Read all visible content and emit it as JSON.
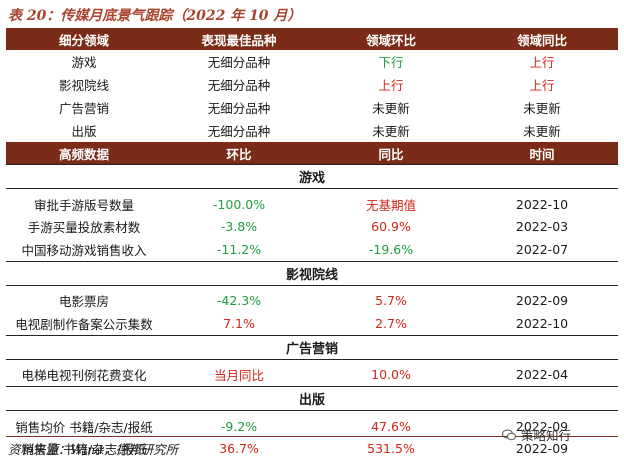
{
  "title": "表 20：传媒月底景气跟踪（2022 年 10 月）",
  "table1": {
    "headers": [
      "细分领域",
      "表现最佳品种",
      "领域环比",
      "领域同比"
    ],
    "rows": [
      {
        "domain": "游戏",
        "best": "无细分品种",
        "mom": "下行",
        "yoy": "上行"
      },
      {
        "domain": "影视院线",
        "best": "无细分品种",
        "mom": "上行",
        "yoy": "上行"
      },
      {
        "domain": "广告营销",
        "best": "无细分品种",
        "mom": "未更新",
        "yoy": "未更新"
      },
      {
        "domain": "出版",
        "best": "无细分品种",
        "mom": "未更新",
        "yoy": "未更新"
      }
    ]
  },
  "table2": {
    "headers": [
      "高频数据",
      "环比",
      "同比",
      "时间"
    ],
    "sections": [
      {
        "name": "游戏",
        "rows": [
          {
            "item": "审批手游版号数量",
            "mom": "-100.0%",
            "yoy": "无基期值",
            "time": "2022-10"
          },
          {
            "item": "手游买量投放素材数",
            "mom": "-3.8%",
            "yoy": "60.9%",
            "time": "2022-03"
          },
          {
            "item": "中国移动游戏销售收入",
            "mom": "-11.2%",
            "yoy": "-19.6%",
            "time": "2022-07"
          }
        ]
      },
      {
        "name": "影视院线",
        "rows": [
          {
            "item": "电影票房",
            "mom": "-42.3%",
            "yoy": "5.7%",
            "time": "2022-09"
          },
          {
            "item": "电视剧制作备案公示集数",
            "mom": "7.1%",
            "yoy": "2.7%",
            "time": "2022-10"
          }
        ]
      },
      {
        "name": "广告营销",
        "rows": [
          {
            "item": "电梯电视刊例花费变化",
            "mom": "当月同比",
            "yoy": "10.0%",
            "time": "2022-04"
          }
        ]
      },
      {
        "name": "出版",
        "rows": [
          {
            "item": "销售均价 书籍/杂志/报纸",
            "mom": "-9.2%",
            "yoy": "47.6%",
            "time": "2022-09"
          },
          {
            "item": "销售量 书籍/杂志/报纸",
            "mom": "36.7%",
            "yoy": "531.5%",
            "time": "2022-09"
          }
        ]
      }
    ]
  },
  "source": "资料来源：Wind，德邦研究所",
  "watermark": "策略知行",
  "colors": {
    "header_bg": "#7b2c18",
    "title": "#a9452e",
    "up": "#d3261a",
    "down": "#1e9e40"
  }
}
